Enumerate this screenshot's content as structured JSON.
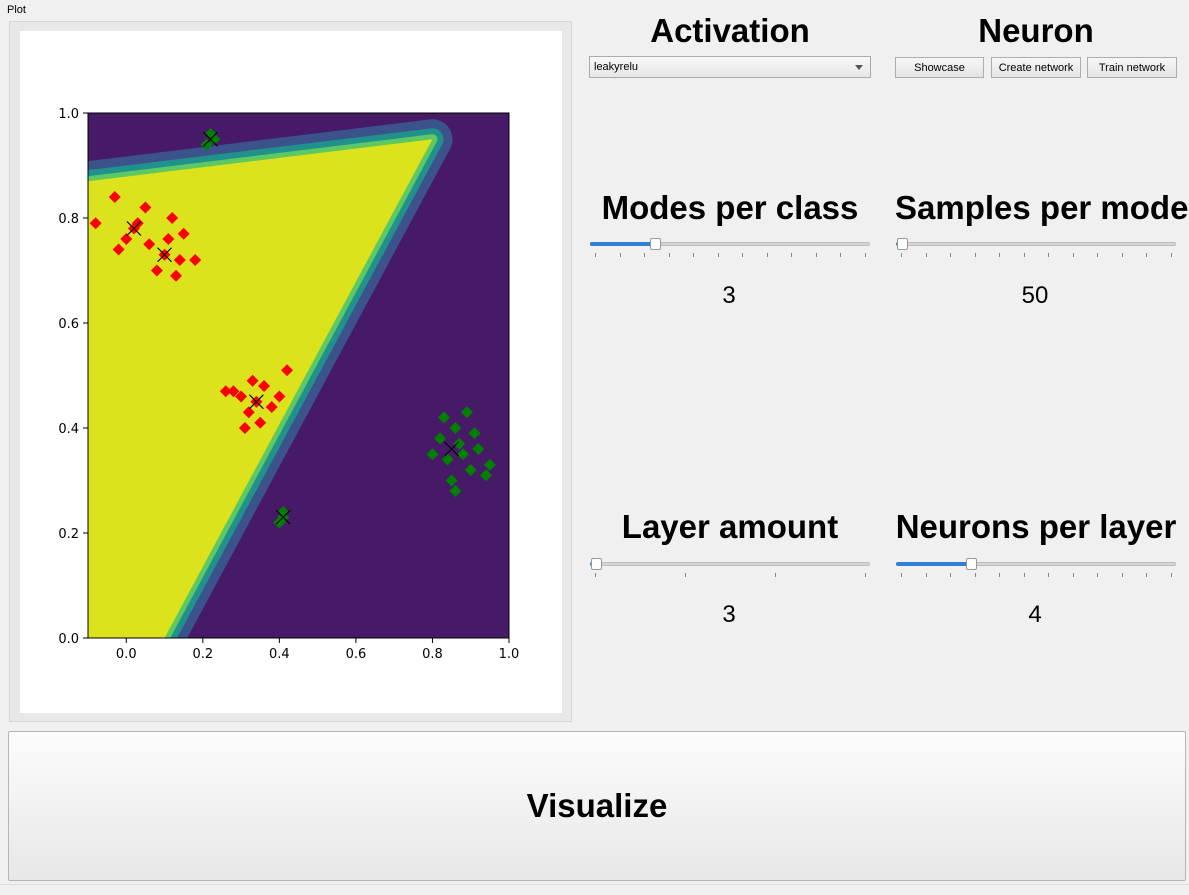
{
  "plot_group": {
    "title": "Plot"
  },
  "activation": {
    "heading": "Activation",
    "selected": "leakyrelu"
  },
  "neuron": {
    "heading": "Neuron",
    "buttons": {
      "showcase": "Showcase",
      "create": "Create network",
      "train": "Train network"
    }
  },
  "modes": {
    "heading": "Modes per class",
    "value": "3",
    "slider_fraction": 0.22
  },
  "samples": {
    "heading": "Samples per mode",
    "value": "50",
    "slider_fraction": 0.0
  },
  "layers": {
    "heading": "Layer amount",
    "value": "3",
    "slider_fraction": 0.0
  },
  "neurons": {
    "heading": "Neurons per layer",
    "value": "4",
    "slider_fraction": 0.26
  },
  "visualize_button": "Visualize",
  "colors": {
    "region_dark": "#471a67",
    "region_yellow": "#dce21c",
    "class_red": "#ff0000",
    "class_green": "#008000",
    "slider_fill": "#2f7fd4"
  },
  "chart_data": {
    "type": "scatter",
    "title": "",
    "xlabel": "",
    "ylabel": "",
    "xlim": [
      -0.1,
      1.0
    ],
    "ylim": [
      0.0,
      1.0
    ],
    "xticks": [
      "0.0",
      "0.2",
      "0.4",
      "0.6",
      "0.8",
      "1.0"
    ],
    "yticks": [
      "0.0",
      "0.2",
      "0.4",
      "0.6",
      "0.8",
      "1.0"
    ],
    "decision_regions": [
      {
        "class": "red",
        "color": "#dce21c",
        "polygon": [
          [
            -0.1,
            0.0
          ],
          [
            -0.1,
            0.87
          ],
          [
            0.8,
            0.95
          ],
          [
            0.1,
            0.0
          ]
        ]
      }
    ],
    "series": [
      {
        "marker": "diamond",
        "color": "#ff0000",
        "points": [
          [
            0.02,
            0.78
          ],
          [
            0.1,
            0.73
          ],
          [
            0.34,
            0.45
          ],
          [
            -0.03,
            0.84
          ],
          [
            0.05,
            0.82
          ],
          [
            0.12,
            0.8
          ],
          [
            -0.02,
            0.74
          ],
          [
            0.08,
            0.7
          ],
          [
            0.14,
            0.72
          ],
          [
            0.0,
            0.76
          ],
          [
            0.06,
            0.75
          ],
          [
            0.15,
            0.77
          ],
          [
            0.18,
            0.72
          ],
          [
            0.03,
            0.79
          ],
          [
            0.11,
            0.76
          ],
          [
            -0.08,
            0.79
          ],
          [
            0.13,
            0.69
          ],
          [
            0.3,
            0.46
          ],
          [
            0.36,
            0.48
          ],
          [
            0.32,
            0.43
          ],
          [
            0.38,
            0.44
          ],
          [
            0.28,
            0.47
          ],
          [
            0.35,
            0.41
          ],
          [
            0.4,
            0.46
          ],
          [
            0.33,
            0.49
          ],
          [
            0.31,
            0.4
          ],
          [
            0.42,
            0.51
          ],
          [
            0.26,
            0.47
          ]
        ]
      },
      {
        "marker": "diamond",
        "color": "#008000",
        "points": [
          [
            0.22,
            0.96
          ],
          [
            0.21,
            0.94
          ],
          [
            0.23,
            0.95
          ],
          [
            0.87,
            0.37
          ],
          [
            0.84,
            0.34
          ],
          [
            0.9,
            0.32
          ],
          [
            0.86,
            0.4
          ],
          [
            0.82,
            0.38
          ],
          [
            0.88,
            0.35
          ],
          [
            0.85,
            0.3
          ],
          [
            0.92,
            0.36
          ],
          [
            0.83,
            0.42
          ],
          [
            0.89,
            0.43
          ],
          [
            0.86,
            0.28
          ],
          [
            0.94,
            0.31
          ],
          [
            0.8,
            0.35
          ],
          [
            0.91,
            0.39
          ],
          [
            0.95,
            0.33
          ],
          [
            0.41,
            0.23
          ],
          [
            0.4,
            0.22
          ],
          [
            0.41,
            0.24
          ]
        ]
      }
    ],
    "centers": [
      [
        0.02,
        0.78
      ],
      [
        0.1,
        0.73
      ],
      [
        0.34,
        0.45
      ],
      [
        0.22,
        0.95
      ],
      [
        0.85,
        0.36
      ],
      [
        0.41,
        0.23
      ]
    ]
  }
}
